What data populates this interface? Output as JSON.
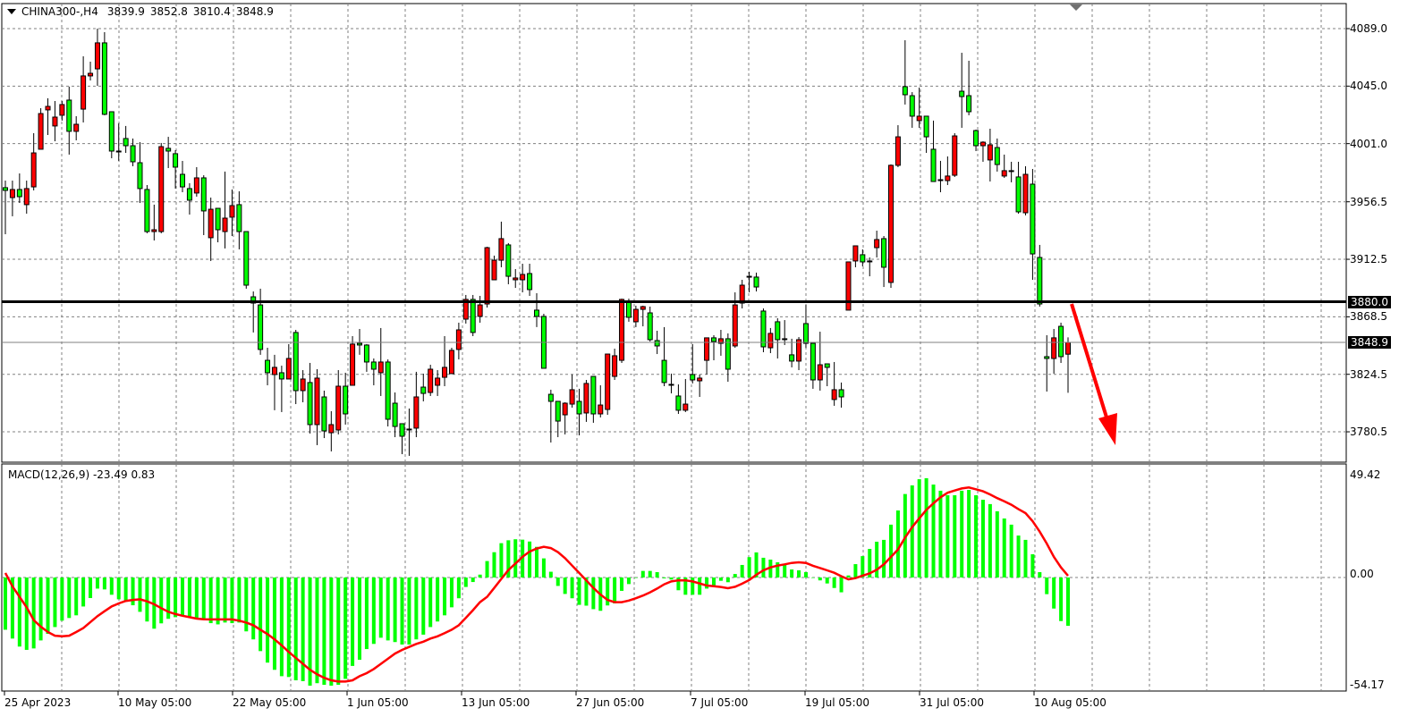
{
  "header": {
    "symbol": "CHINA300-,H4",
    "open": "3839.9",
    "high": "3852.8",
    "low": "3810.4",
    "close": "3848.9"
  },
  "macd_label": "MACD(12,26,9) -23.49 0.83",
  "colors": {
    "bull": "#ff0000",
    "bear": "#00ff00",
    "histogram": "#00ff00",
    "signal": "#ff0000",
    "level_line": "#000000",
    "arrow": "#ff0000",
    "grid": "#808080"
  },
  "price_axis": {
    "labels": [
      "4089.0",
      "4045.0",
      "4001.0",
      "3956.5",
      "3912.5",
      "3868.5",
      "3824.5",
      "3780.5"
    ],
    "level_label": "3880.0",
    "bid_label": "3848.9"
  },
  "macd_axis": {
    "labels": [
      "49.42",
      "0.00",
      "-54.17"
    ]
  },
  "time_axis": {
    "labels": [
      "25 Apr 2023",
      "10 May 05:00",
      "22 May 05:00",
      "1 Jun 05:00",
      "13 Jun 05:00",
      "27 Jun 05:00",
      "7 Jul 05:00",
      "19 Jul 05:00",
      "31 Jul 05:00",
      "10 Aug 05:00"
    ]
  },
  "chart_data": [
    {
      "type": "candlestick",
      "symbol": "CHINA300-",
      "timeframe": "H4",
      "ylim": [
        3760,
        4095
      ],
      "horizontal_level": 3880.0,
      "bid": 3848.9,
      "annotation": "red arrow pointing down from 3880 level",
      "ohlc": [
        [
          3967.3,
          3972.7,
          3931.7,
          3965.2
        ],
        [
          3959.7,
          3972.7,
          3945.4,
          3965.9
        ],
        [
          3965.9,
          3978.2,
          3955.6,
          3960.4
        ],
        [
          3954.3,
          3972.7,
          3947.4,
          3966.6
        ],
        [
          3967.9,
          4009.0,
          3965.2,
          3993.9
        ],
        [
          3996.7,
          4028.1,
          3996.7,
          4024.0
        ],
        [
          4026.8,
          4035.7,
          4007.6,
          4029.5
        ],
        [
          4014.5,
          4033.6,
          4002.8,
          4021.3
        ],
        [
          4022.7,
          4033.6,
          4018.6,
          4030.9
        ],
        [
          4034.3,
          4044.6,
          3992.6,
          4010.4
        ],
        [
          4010.4,
          4022.0,
          4003.5,
          4015.8
        ],
        [
          4027.4,
          4067.8,
          4017.2,
          4052.8
        ],
        [
          4052.8,
          4063.7,
          4049.3,
          4054.8
        ],
        [
          4058.2,
          4089.0,
          4045.2,
          4078.1
        ],
        [
          4078.1,
          4086.3,
          4022.7,
          4023.4
        ],
        [
          4025.4,
          4025.4,
          3989.8,
          3995.3
        ],
        [
          3995.3,
          4016.5,
          3987.8,
          3995.3
        ],
        [
          4004.9,
          4014.5,
          3993.9,
          3999.4
        ],
        [
          3999.4,
          4004.9,
          3983.7,
          3987.1
        ],
        [
          3986.4,
          4002.1,
          3955.6,
          3966.6
        ],
        [
          3965.9,
          3969.3,
          3932.4,
          3933.7
        ],
        [
          3933.7,
          3954.3,
          3926.9,
          3935.1
        ],
        [
          3933.7,
          4001.5,
          3932.4,
          3998.7
        ],
        [
          3997.4,
          4006.2,
          3982.3,
          3995.3
        ],
        [
          3993.3,
          3996.0,
          3966.6,
          3983.0
        ],
        [
          3977.5,
          3987.8,
          3963.8,
          3967.9
        ],
        [
          3966.6,
          3970.7,
          3946.7,
          3957.7
        ],
        [
          3963.2,
          3983.0,
          3960.4,
          3974.8
        ],
        [
          3974.8,
          3976.8,
          3931.0,
          3949.5
        ],
        [
          3929.0,
          3959.7,
          3911.2,
          3950.8
        ],
        [
          3951.5,
          3951.5,
          3925.5,
          3935.1
        ],
        [
          3933.7,
          3979.6,
          3920.8,
          3944.0
        ],
        [
          3944.7,
          3965.9,
          3930.3,
          3953.6
        ],
        [
          3954.3,
          3964.5,
          3920.1,
          3933.7
        ],
        [
          3933.7,
          3933.7,
          3890.0,
          3892.7
        ],
        [
          3883.8,
          3887.9,
          3856.5,
          3879.0
        ],
        [
          3877.6,
          3890.0,
          3839.4,
          3843.5
        ],
        [
          3835.2,
          3844.8,
          3816.1,
          3825.7
        ],
        [
          3824.3,
          3839.4,
          3797.0,
          3829.8
        ],
        [
          3825.7,
          3831.1,
          3795.6,
          3820.9
        ],
        [
          3820.9,
          3847.6,
          3820.9,
          3836.6
        ],
        [
          3856.5,
          3858.5,
          3801.7,
          3812.0
        ],
        [
          3812.0,
          3827.7,
          3803.1,
          3820.9
        ],
        [
          3818.2,
          3833.2,
          3779.2,
          3786.0
        ],
        [
          3786.0,
          3828.4,
          3770.3,
          3821.6
        ],
        [
          3807.2,
          3812.0,
          3775.7,
          3781.2
        ],
        [
          3779.8,
          3796.3,
          3765.5,
          3786.0
        ],
        [
          3781.9,
          3827.7,
          3778.5,
          3815.4
        ],
        [
          3815.4,
          3825.7,
          3786.0,
          3794.2
        ],
        [
          3816.1,
          3853.7,
          3816.1,
          3847.6
        ],
        [
          3848.2,
          3859.2,
          3839.4,
          3846.9
        ],
        [
          3846.9,
          3847.6,
          3826.4,
          3833.9
        ],
        [
          3833.9,
          3836.6,
          3816.1,
          3828.4
        ],
        [
          3825.7,
          3859.9,
          3807.9,
          3833.9
        ],
        [
          3833.9,
          3835.9,
          3784.6,
          3790.1
        ],
        [
          3802.4,
          3810.6,
          3776.4,
          3784.6
        ],
        [
          3786.7,
          3786.7,
          3763.4,
          3777.1
        ],
        [
          3782.6,
          3798.3,
          3762.1,
          3782.6
        ],
        [
          3783.3,
          3826.4,
          3776.4,
          3807.2
        ],
        [
          3814.7,
          3825.0,
          3803.8,
          3809.9
        ],
        [
          3810.6,
          3831.8,
          3807.9,
          3828.4
        ],
        [
          3816.1,
          3827.7,
          3807.9,
          3821.6
        ],
        [
          3822.2,
          3853.7,
          3815.4,
          3829.8
        ],
        [
          3825.0,
          3844.8,
          3825.0,
          3842.8
        ],
        [
          3843.5,
          3864.0,
          3835.9,
          3858.5
        ],
        [
          3866.7,
          3885.2,
          3863.3,
          3881.8
        ],
        [
          3881.8,
          3885.2,
          3853.7,
          3856.5
        ],
        [
          3868.8,
          3884.5,
          3864.0,
          3877.6
        ],
        [
          3878.3,
          3922.1,
          3875.6,
          3921.4
        ],
        [
          3896.8,
          3915.3,
          3896.8,
          3911.8
        ],
        [
          3911.8,
          3941.3,
          3906.4,
          3928.3
        ],
        [
          3923.5,
          3924.9,
          3893.4,
          3899.5
        ],
        [
          3896.8,
          3905.0,
          3890.6,
          3898.2
        ],
        [
          3896.8,
          3909.1,
          3887.2,
          3900.9
        ],
        [
          3901.6,
          3909.1,
          3884.5,
          3889.3
        ],
        [
          3873.6,
          3886.5,
          3860.6,
          3868.8
        ],
        [
          3868.8,
          3870.8,
          3829.1,
          3829.1
        ],
        [
          3809.2,
          3812.7,
          3772.3,
          3803.8
        ],
        [
          3803.8,
          3803.8,
          3776.4,
          3788.7
        ],
        [
          3793.5,
          3803.1,
          3778.5,
          3802.4
        ],
        [
          3801.7,
          3824.3,
          3799.0,
          3812.7
        ],
        [
          3803.8,
          3813.4,
          3777.8,
          3794.2
        ],
        [
          3794.9,
          3820.2,
          3788.1,
          3817.5
        ],
        [
          3822.9,
          3822.9,
          3787.4,
          3794.2
        ],
        [
          3794.2,
          3816.1,
          3791.5,
          3801.0
        ],
        [
          3797.6,
          3840.0,
          3793.5,
          3840.0
        ],
        [
          3822.9,
          3844.1,
          3820.2,
          3838.7
        ],
        [
          3835.2,
          3882.4,
          3833.2,
          3881.8
        ],
        [
          3880.4,
          3882.4,
          3864.7,
          3868.1
        ],
        [
          3864.7,
          3877.0,
          3860.6,
          3874.2
        ],
        [
          3874.2,
          3877.0,
          3861.2,
          3876.3
        ],
        [
          3871.5,
          3876.3,
          3849.6,
          3851.0
        ],
        [
          3850.3,
          3857.8,
          3840.0,
          3846.2
        ],
        [
          3835.2,
          3860.6,
          3815.4,
          3818.2
        ],
        [
          3816.8,
          3825.0,
          3809.9,
          3816.8
        ],
        [
          3807.9,
          3816.8,
          3794.2,
          3797.0
        ],
        [
          3797.0,
          3820.9,
          3795.6,
          3801.7
        ],
        [
          3824.3,
          3847.6,
          3817.5,
          3820.2
        ],
        [
          3819.5,
          3824.3,
          3807.2,
          3821.6
        ],
        [
          3835.2,
          3852.4,
          3824.3,
          3852.4
        ],
        [
          3852.4,
          3854.4,
          3835.2,
          3849.6
        ],
        [
          3848.2,
          3858.5,
          3838.7,
          3851.7
        ],
        [
          3851.7,
          3855.8,
          3818.8,
          3828.4
        ],
        [
          3846.2,
          3887.2,
          3844.8,
          3877.6
        ],
        [
          3879.0,
          3896.8,
          3874.9,
          3892.7
        ],
        [
          3899.5,
          3903.0,
          3887.2,
          3899.5
        ],
        [
          3898.9,
          3902.3,
          3887.9,
          3891.3
        ],
        [
          3872.9,
          3874.9,
          3841.4,
          3845.5
        ],
        [
          3844.8,
          3859.9,
          3840.7,
          3855.8
        ],
        [
          3864.7,
          3867.4,
          3836.6,
          3851.0
        ],
        [
          3851.7,
          3866.0,
          3846.9,
          3851.7
        ],
        [
          3839.4,
          3851.7,
          3829.8,
          3834.6
        ],
        [
          3834.6,
          3853.0,
          3827.7,
          3851.0
        ],
        [
          3863.3,
          3877.6,
          3844.8,
          3848.2
        ],
        [
          3848.2,
          3848.2,
          3813.4,
          3820.2
        ],
        [
          3820.2,
          3857.1,
          3812.0,
          3831.8
        ],
        [
          3832.5,
          3832.5,
          3815.4,
          3829.8
        ],
        [
          3805.2,
          3833.9,
          3800.4,
          3812.7
        ],
        [
          3812.7,
          3818.2,
          3799.0,
          3807.2
        ],
        [
          3873.6,
          3910.5,
          3873.6,
          3910.5
        ],
        [
          3911.2,
          3922.8,
          3906.4,
          3922.8
        ],
        [
          3916.0,
          3920.1,
          3907.1,
          3910.5
        ],
        [
          3911.2,
          3913.9,
          3899.5,
          3911.2
        ],
        [
          3921.4,
          3934.4,
          3913.9,
          3927.6
        ],
        [
          3928.3,
          3930.3,
          3891.3,
          3906.4
        ],
        [
          3894.8,
          3985.1,
          3890.6,
          3984.4
        ],
        [
          3984.4,
          4015.1,
          3983.0,
          4006.2
        ],
        [
          4044.6,
          4080.1,
          4030.9,
          4038.4
        ],
        [
          4037.7,
          4040.4,
          4013.1,
          4022.0
        ],
        [
          4018.6,
          4043.9,
          4013.1,
          4022.0
        ],
        [
          4022.0,
          4022.0,
          3993.9,
          4006.2
        ],
        [
          3996.7,
          4018.6,
          3972.0,
          3972.0
        ],
        [
          3973.4,
          3987.8,
          3963.8,
          3973.4
        ],
        [
          3972.7,
          3991.2,
          3969.3,
          3976.2
        ],
        [
          3976.8,
          4009.0,
          3975.5,
          4006.9
        ],
        [
          4041.1,
          4070.5,
          4013.1,
          4037.0
        ],
        [
          4037.7,
          4064.4,
          4022.7,
          4025.4
        ],
        [
          4011.0,
          4011.7,
          3995.3,
          3999.4
        ],
        [
          3999.4,
          4002.8,
          3987.1,
          4002.1
        ],
        [
          3988.5,
          4012.4,
          3972.0,
          4000.1
        ],
        [
          3998.0,
          4004.9,
          3979.6,
          3985.0
        ],
        [
          3976.2,
          3992.6,
          3974.8,
          3980.3
        ],
        [
          3980.3,
          3987.1,
          3971.4,
          3980.3
        ],
        [
          3975.5,
          3987.1,
          3947.4,
          3948.8
        ],
        [
          3948.1,
          3983.7,
          3946.1,
          3977.5
        ],
        [
          3970.0,
          3981.6,
          3896.8,
          3916.6
        ],
        [
          3913.9,
          3923.5,
          3876.3,
          3878.3
        ],
        [
          3838.0,
          3854.4,
          3811.3,
          3836.6
        ],
        [
          3836.6,
          3859.2,
          3825.0,
          3852.4
        ],
        [
          3861.2,
          3864.0,
          3833.2,
          3838.0
        ],
        [
          3839.9,
          3852.8,
          3810.4,
          3848.9
        ]
      ]
    },
    {
      "type": "bar+line",
      "indicator": "MACD(12,26,9)",
      "ylim": [
        -54.17,
        49.42
      ],
      "histogram": [
        -25.4,
        -29.7,
        -33.6,
        -35.2,
        -34.5,
        -30.6,
        -27.4,
        -24.1,
        -21.0,
        -19.7,
        -18.4,
        -14.1,
        -10.0,
        -5.4,
        -5.8,
        -8.4,
        -10.6,
        -11.6,
        -13.5,
        -16.7,
        -21.4,
        -24.9,
        -22.3,
        -20.1,
        -19.3,
        -18.8,
        -19.6,
        -19.9,
        -20.4,
        -22.2,
        -22.8,
        -21.9,
        -22.2,
        -21.9,
        -26.2,
        -30.1,
        -35.8,
        -41.4,
        -44.9,
        -48.0,
        -48.4,
        -50.0,
        -50.4,
        -52.6,
        -51.4,
        -52.2,
        -52.6,
        -52.2,
        -49.3,
        -43.0,
        -40.0,
        -34.8,
        -32.3,
        -29.3,
        -30.6,
        -31.4,
        -32.6,
        -32.6,
        -30.1,
        -27.8,
        -24.1,
        -21.4,
        -18.4,
        -14.5,
        -10.1,
        -4.6,
        -2.2,
        1.4,
        8.0,
        12.3,
        16.7,
        18.1,
        18.6,
        18.4,
        17.5,
        14.9,
        9.3,
        2.8,
        -4.1,
        -8.0,
        -10.1,
        -13.3,
        -13.7,
        -15.4,
        -16.2,
        -13.6,
        -12.6,
        -6.5,
        -3.2,
        -0.1,
        3.2,
        3.2,
        2.6,
        -0.4,
        -1.0,
        -6.2,
        -8.4,
        -8.4,
        -8.4,
        -5.4,
        -3.9,
        -1.6,
        -2.3,
        1.7,
        6.1,
        9.9,
        12.2,
        9.6,
        8.7,
        7.4,
        6.1,
        3.9,
        3.5,
        2.6,
        0,
        -1.4,
        -2.9,
        -5.1,
        -7.2,
        1.0,
        6.5,
        10.4,
        13.9,
        17.4,
        18.3,
        25.7,
        32.6,
        40.6,
        44.8,
        47.8,
        48.3,
        45.2,
        42.2,
        40.0,
        40.0,
        42.2,
        42.6,
        40.0,
        37.8,
        35.7,
        32.2,
        28.7,
        25.7,
        20.4,
        18.3,
        11.3,
        2.6,
        -8.1,
        -15.1,
        -21.2,
        -23.49
      ],
      "signal": [
        2.2,
        -4.3,
        -9.4,
        -14.5,
        -20.7,
        -23.9,
        -26.5,
        -28.3,
        -28.6,
        -28.3,
        -26.5,
        -24.6,
        -21.7,
        -18.8,
        -16.4,
        -14.1,
        -12.6,
        -11.4,
        -10.9,
        -10.6,
        -11.6,
        -13.0,
        -14.9,
        -16.7,
        -17.8,
        -18.6,
        -19.3,
        -20.0,
        -20.3,
        -20.4,
        -20.4,
        -20.4,
        -20.4,
        -21.0,
        -21.9,
        -23.2,
        -25.4,
        -27.5,
        -30.1,
        -33.0,
        -36.2,
        -39.1,
        -42.0,
        -44.9,
        -47.1,
        -48.8,
        -50.0,
        -50.6,
        -50.6,
        -50.0,
        -48.0,
        -46.5,
        -44.5,
        -42.0,
        -39.5,
        -37.0,
        -35.2,
        -33.8,
        -32.3,
        -31.2,
        -29.7,
        -28.6,
        -27.1,
        -25.4,
        -23.2,
        -19.6,
        -15.9,
        -12.0,
        -9.4,
        -5.1,
        -0.7,
        3.6,
        6.8,
        10.1,
        12.6,
        14.1,
        14.9,
        14.3,
        12.3,
        9.4,
        5.8,
        2.2,
        -1.4,
        -5.1,
        -8.3,
        -10.9,
        -12.0,
        -12.0,
        -11.2,
        -10.1,
        -8.8,
        -7.2,
        -5.4,
        -3.3,
        -1.9,
        -1.4,
        -1.4,
        -1.9,
        -2.9,
        -3.9,
        -4.2,
        -4.6,
        -5.2,
        -4.5,
        -3.0,
        -1.2,
        1.3,
        3.5,
        4.9,
        5.8,
        6.4,
        7.1,
        7.4,
        7.1,
        5.7,
        4.6,
        3.5,
        2.3,
        0.6,
        -0.9,
        -0.3,
        0.9,
        2.0,
        3.8,
        6.4,
        10.0,
        13.6,
        19.4,
        24.5,
        28.8,
        32.9,
        36.1,
        39.0,
        41.2,
        42.3,
        43.3,
        43.8,
        42.9,
        41.9,
        40.4,
        38.6,
        37.1,
        35.4,
        33.2,
        31.3,
        27.4,
        22.3,
        16.5,
        10.0,
        4.9,
        0.83
      ]
    }
  ]
}
